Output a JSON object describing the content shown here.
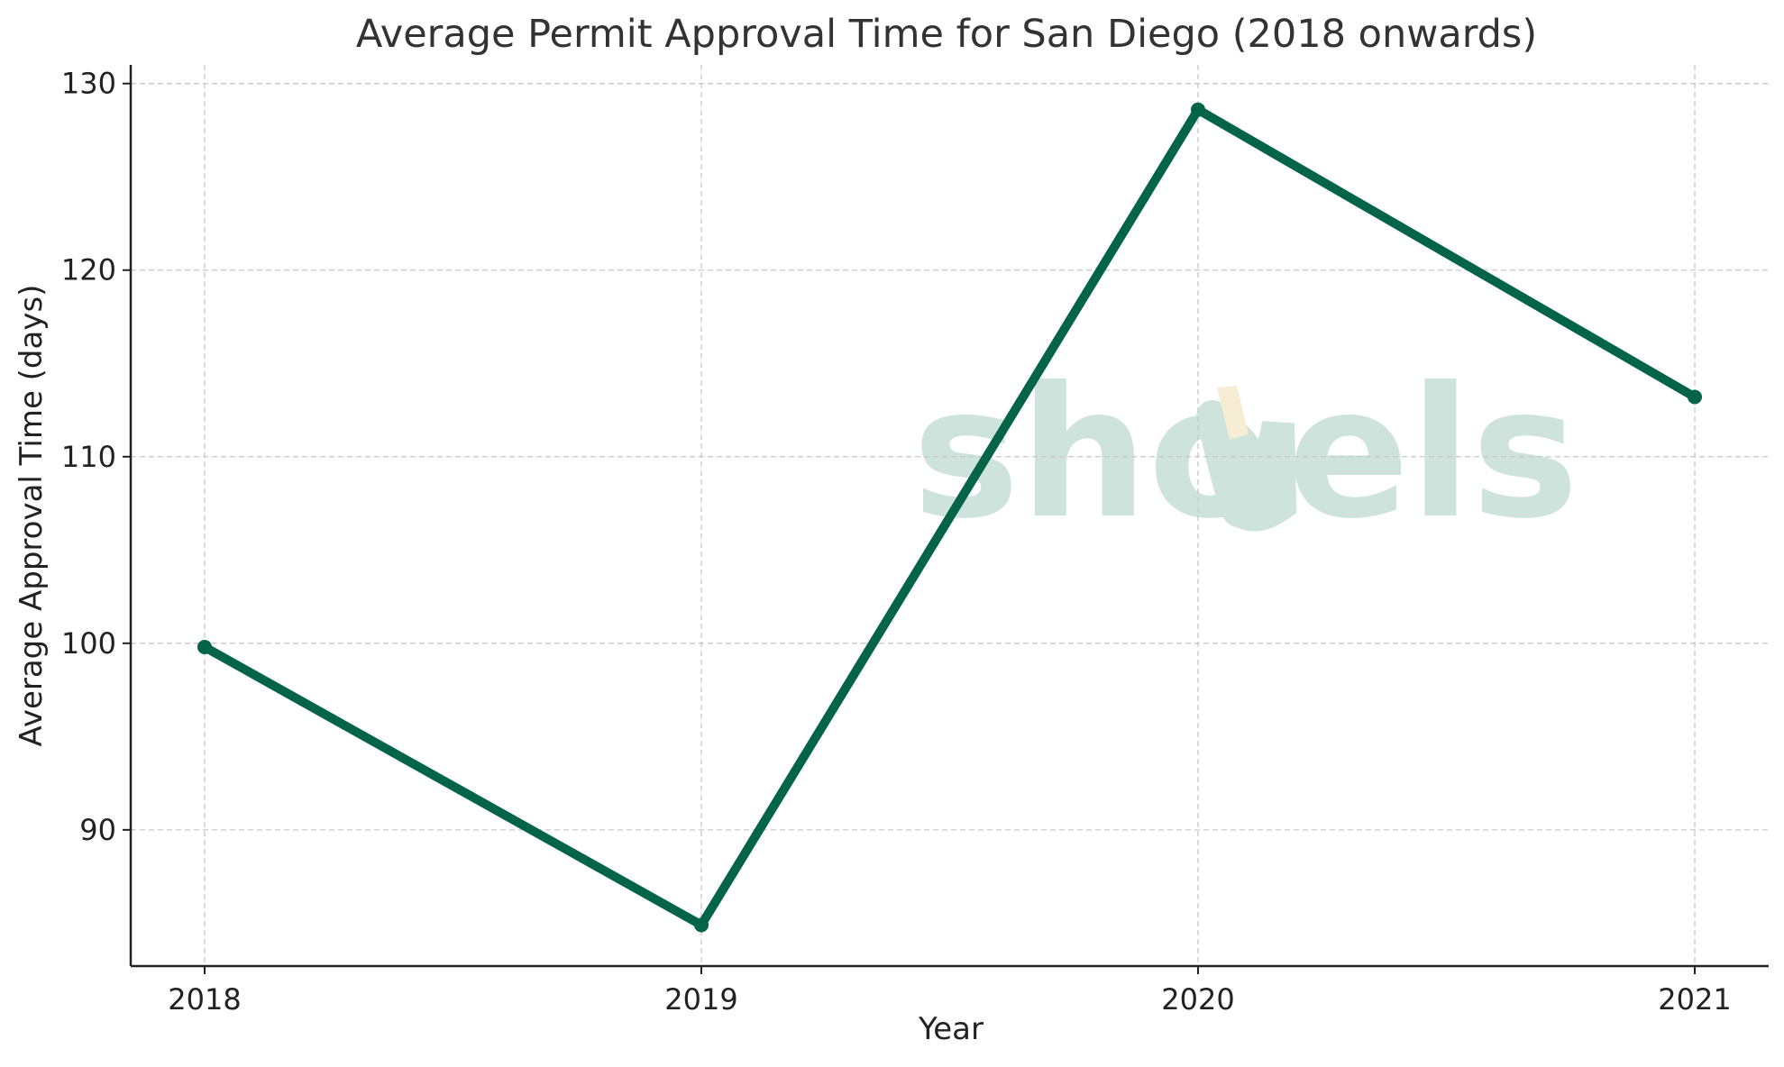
{
  "chart_data": {
    "type": "line",
    "title": "Average Permit Approval Time for San Diego (2018 onwards)",
    "xlabel": "Year",
    "ylabel": "Average Approval Time (days)",
    "x": [
      "2018",
      "2019",
      "2020",
      "2021"
    ],
    "series": [
      {
        "values": [
          99.8,
          84.9,
          128.6,
          113.2
        ],
        "color": "#03644a"
      }
    ],
    "ylim": [
      82.7,
      131.0
    ],
    "yticks": [
      90,
      100,
      110,
      120,
      130
    ],
    "grid": true,
    "legend": "none"
  },
  "watermark": {
    "text": "shovels",
    "color": "#cde3dc",
    "accent_color": "#f7ecd4"
  }
}
